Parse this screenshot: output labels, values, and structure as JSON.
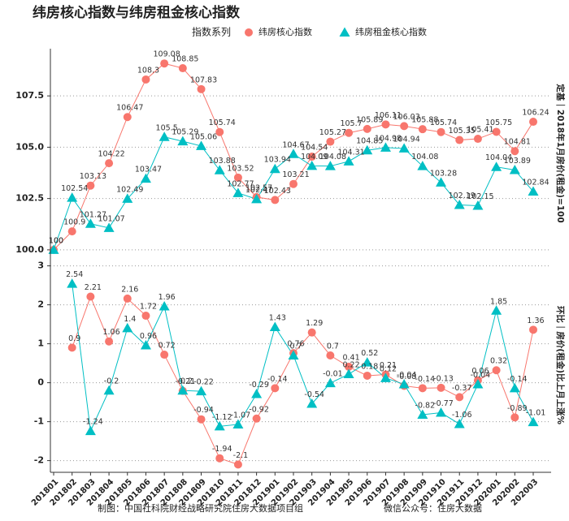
{
  "title": "纬房核心指数与纬房租金核心指数",
  "legend_title": "指数系列",
  "footer": [
    "制图：中国社科院财经战略研究院住房大数据项目组",
    "微信公众号：住房大数据"
  ],
  "chart_data": [
    {
      "type": "line",
      "ylabel": "定基｜2018年1月房价(租金)=100",
      "ylim": [
        99.6,
        109.8
      ],
      "yticks": [
        {
          "value": 100,
          "label": "100.0"
        },
        102.5,
        {
          "value": 105,
          "label": "105.0"
        },
        107.5
      ],
      "grid": true,
      "series": [
        {
          "name": "纬房核心指数",
          "color": "#F8766D",
          "marker": "circle",
          "values": [
            100,
            100.9,
            103.13,
            104.22,
            106.47,
            108.3,
            109.08,
            108.85,
            107.83,
            105.74,
            103.52,
            102.57,
            102.43,
            103.21,
            104.54,
            105.27,
            105.7,
            105.89,
            106.11,
            106.03,
            105.88,
            105.74,
            105.35,
            105.41,
            105.75,
            104.81,
            106.24
          ]
        },
        {
          "name": "纬房租金核心指数",
          "color": "#00BFC4",
          "marker": "triangle",
          "values": [
            100,
            102.54,
            101.27,
            101.07,
            102.49,
            103.47,
            105.5,
            105.29,
            105.06,
            103.88,
            102.77,
            102.47,
            103.94,
            104.67,
            104.09,
            104.08,
            104.31,
            104.85,
            104.98,
            104.94,
            104.08,
            103.28,
            102.19,
            102.15,
            104.04,
            103.89,
            102.84
          ]
        }
      ]
    },
    {
      "type": "line",
      "ylabel": "环比｜房价(租金)比上月上涨%",
      "categories": [
        "201801",
        "201802",
        "201803",
        "201804",
        "201805",
        "201806",
        "201807",
        "201808",
        "201809",
        "201810",
        "201811",
        "201812",
        "201901",
        "201902",
        "201903",
        "201904",
        "201905",
        "201906",
        "201907",
        "201908",
        "201909",
        "201910",
        "201911",
        "201912",
        "202001",
        "202002",
        "202003"
      ],
      "ylim": [
        -2.3,
        3.2
      ],
      "yticks": [
        -2,
        -1,
        0,
        1,
        2,
        3
      ],
      "grid": true,
      "series": [
        {
          "color": "#F8766D",
          "marker": "circle",
          "values": [
            null,
            0.9,
            2.21,
            1.06,
            2.16,
            1.72,
            0.72,
            -0.21,
            -0.94,
            -1.94,
            -2.1,
            -0.92,
            -0.14,
            0.76,
            1.29,
            0.7,
            0.41,
            0.18,
            0.21,
            -0.08,
            -0.14,
            -0.13,
            -0.37,
            0.06,
            0.32,
            -0.89,
            1.36
          ]
        },
        {
          "color": "#00BFC4",
          "marker": "triangle",
          "values": [
            null,
            2.54,
            -1.24,
            -0.2,
            1.4,
            0.96,
            1.96,
            -0.2,
            -0.22,
            -1.12,
            -1.07,
            -0.29,
            1.43,
            0.7,
            -0.54,
            -0.01,
            0.22,
            0.52,
            0.12,
            -0.04,
            -0.82,
            -0.77,
            -1.06,
            -0.04,
            1.85,
            -0.14,
            -1.01
          ]
        }
      ]
    }
  ]
}
